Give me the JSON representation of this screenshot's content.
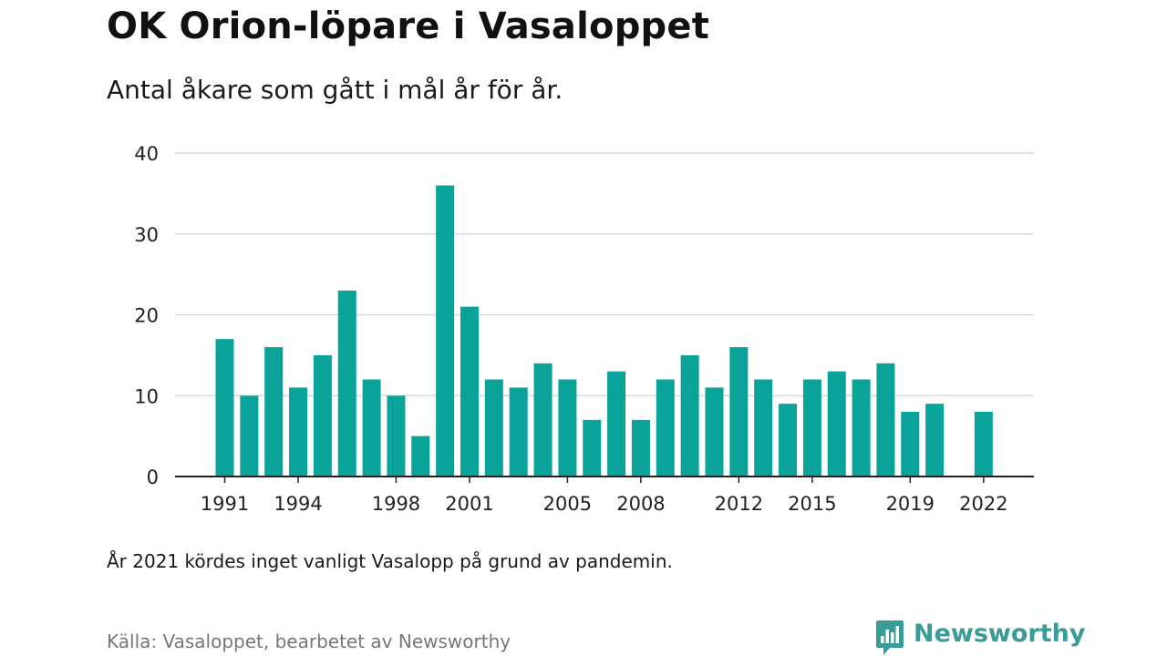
{
  "header": {
    "title": "OK Orion-löpare i Vasaloppet",
    "subtitle": "Antal åkare som gått i mål år för år."
  },
  "footer": {
    "note": "År 2021 kördes inget vanligt Vasalopp på grund av pandemin.",
    "source": "Källa: Vasaloppet, bearbetet av Newsworthy",
    "brand": "Newsworthy"
  },
  "colors": {
    "bar": "#0aa39a",
    "grid": "#d9d9d9",
    "axis": "#222222",
    "brand": "#3a9c96"
  },
  "icons": {
    "brand_logo": "bar-chart-speech-bubble-icon"
  },
  "chart_data": {
    "type": "bar",
    "title": "OK Orion-löpare i Vasaloppet",
    "subtitle": "Antal åkare som gått i mål år för år.",
    "xlabel": "",
    "ylabel": "",
    "x": [
      1991,
      1992,
      1993,
      1994,
      1995,
      1996,
      1997,
      1998,
      1999,
      2000,
      2001,
      2002,
      2003,
      2004,
      2005,
      2006,
      2007,
      2008,
      2009,
      2010,
      2011,
      2012,
      2013,
      2014,
      2015,
      2016,
      2017,
      2018,
      2019,
      2020,
      2021,
      2022
    ],
    "values": [
      17,
      10,
      16,
      11,
      15,
      23,
      12,
      10,
      5,
      36,
      21,
      12,
      11,
      14,
      12,
      7,
      13,
      7,
      12,
      15,
      11,
      16,
      12,
      9,
      12,
      13,
      12,
      14,
      8,
      9,
      null,
      8
    ],
    "x_tick_labels": [
      1991,
      1994,
      1998,
      2001,
      2005,
      2008,
      2012,
      2015,
      2019,
      2022
    ],
    "y_ticks": [
      0,
      10,
      20,
      30,
      40
    ],
    "ylim": [
      0,
      40
    ],
    "grid": true,
    "legend": "none"
  }
}
